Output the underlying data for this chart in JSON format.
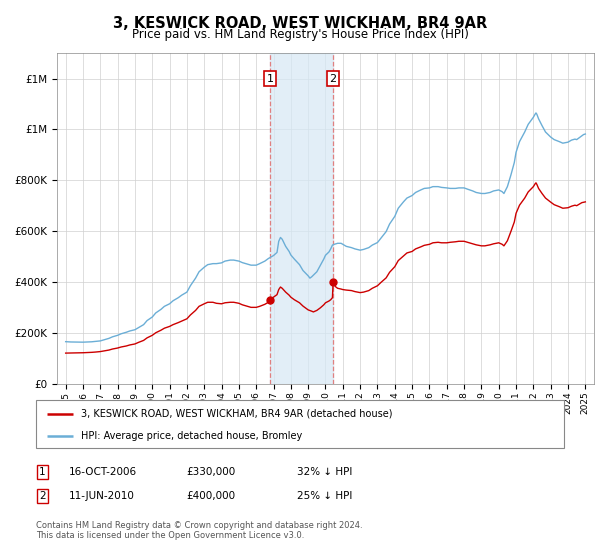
{
  "title": "3, KESWICK ROAD, WEST WICKHAM, BR4 9AR",
  "subtitle": "Price paid vs. HM Land Registry's House Price Index (HPI)",
  "legend_line1": "3, KESWICK ROAD, WEST WICKHAM, BR4 9AR (detached house)",
  "legend_line2": "HPI: Average price, detached house, Bromley",
  "footnote": "Contains HM Land Registry data © Crown copyright and database right 2024.\nThis data is licensed under the Open Government Licence v3.0.",
  "transaction1_date": "16-OCT-2006",
  "transaction1_price": 330000,
  "transaction1_label": "32% ↓ HPI",
  "transaction1_x": 2006.79,
  "transaction2_date": "11-JUN-2010",
  "transaction2_price": 400000,
  "transaction2_label": "25% ↓ HPI",
  "transaction2_x": 2010.44,
  "hpi_color": "#6baed6",
  "price_color": "#cc0000",
  "marker_color": "#cc0000",
  "shade_color": "#d6e8f5",
  "vline_color": "#e08080",
  "box_edge_color": "#cc0000",
  "ylim_min": 0,
  "ylim_max": 1300000,
  "xlim_min": 1994.5,
  "xlim_max": 2025.5,
  "hpi_data": [
    [
      1995.0,
      165000
    ],
    [
      1995.1,
      164500
    ],
    [
      1995.2,
      164200
    ],
    [
      1995.3,
      163800
    ],
    [
      1995.5,
      163500
    ],
    [
      1995.7,
      163000
    ],
    [
      1995.9,
      162800
    ],
    [
      1996.0,
      163000
    ],
    [
      1996.2,
      163500
    ],
    [
      1996.5,
      164500
    ],
    [
      1996.7,
      166000
    ],
    [
      1997.0,
      168000
    ],
    [
      1997.2,
      172000
    ],
    [
      1997.5,
      178000
    ],
    [
      1997.7,
      184000
    ],
    [
      1998.0,
      190000
    ],
    [
      1998.2,
      196000
    ],
    [
      1998.5,
      202000
    ],
    [
      1998.7,
      207000
    ],
    [
      1999.0,
      212000
    ],
    [
      1999.2,
      220000
    ],
    [
      1999.5,
      232000
    ],
    [
      1999.7,
      248000
    ],
    [
      2000.0,
      262000
    ],
    [
      2000.2,
      278000
    ],
    [
      2000.5,
      292000
    ],
    [
      2000.7,
      304000
    ],
    [
      2001.0,
      314000
    ],
    [
      2001.2,
      326000
    ],
    [
      2001.5,
      338000
    ],
    [
      2001.7,
      348000
    ],
    [
      2002.0,
      360000
    ],
    [
      2002.2,
      385000
    ],
    [
      2002.5,
      415000
    ],
    [
      2002.7,
      440000
    ],
    [
      2003.0,
      458000
    ],
    [
      2003.2,
      468000
    ],
    [
      2003.5,
      472000
    ],
    [
      2003.7,
      472000
    ],
    [
      2004.0,
      475000
    ],
    [
      2004.2,
      482000
    ],
    [
      2004.5,
      486000
    ],
    [
      2004.7,
      486000
    ],
    [
      2005.0,
      482000
    ],
    [
      2005.2,
      476000
    ],
    [
      2005.5,
      470000
    ],
    [
      2005.7,
      466000
    ],
    [
      2006.0,
      466000
    ],
    [
      2006.2,
      472000
    ],
    [
      2006.5,
      482000
    ],
    [
      2006.7,
      492000
    ],
    [
      2007.0,
      504000
    ],
    [
      2007.2,
      516000
    ],
    [
      2007.3,
      560000
    ],
    [
      2007.4,
      575000
    ],
    [
      2007.5,
      568000
    ],
    [
      2007.7,
      540000
    ],
    [
      2007.9,
      520000
    ],
    [
      2008.0,
      506000
    ],
    [
      2008.2,
      490000
    ],
    [
      2008.5,
      468000
    ],
    [
      2008.7,
      445000
    ],
    [
      2009.0,
      424000
    ],
    [
      2009.1,
      415000
    ],
    [
      2009.2,
      420000
    ],
    [
      2009.5,
      440000
    ],
    [
      2009.7,
      465000
    ],
    [
      2009.9,
      490000
    ],
    [
      2010.0,
      505000
    ],
    [
      2010.2,
      518000
    ],
    [
      2010.3,
      530000
    ],
    [
      2010.4,
      545000
    ],
    [
      2010.5,
      548000
    ],
    [
      2010.6,
      550000
    ],
    [
      2010.7,
      552000
    ],
    [
      2010.9,
      552000
    ],
    [
      2011.0,
      548000
    ],
    [
      2011.2,
      540000
    ],
    [
      2011.5,
      535000
    ],
    [
      2011.7,
      530000
    ],
    [
      2012.0,
      525000
    ],
    [
      2012.2,
      528000
    ],
    [
      2012.5,
      535000
    ],
    [
      2012.7,
      545000
    ],
    [
      2013.0,
      555000
    ],
    [
      2013.2,
      572000
    ],
    [
      2013.5,
      598000
    ],
    [
      2013.7,
      628000
    ],
    [
      2014.0,
      658000
    ],
    [
      2014.2,
      690000
    ],
    [
      2014.5,
      715000
    ],
    [
      2014.7,
      730000
    ],
    [
      2015.0,
      740000
    ],
    [
      2015.2,
      752000
    ],
    [
      2015.5,
      762000
    ],
    [
      2015.7,
      768000
    ],
    [
      2016.0,
      770000
    ],
    [
      2016.2,
      775000
    ],
    [
      2016.5,
      775000
    ],
    [
      2016.7,
      772000
    ],
    [
      2017.0,
      770000
    ],
    [
      2017.2,
      768000
    ],
    [
      2017.5,
      768000
    ],
    [
      2017.7,
      770000
    ],
    [
      2018.0,
      770000
    ],
    [
      2018.2,
      765000
    ],
    [
      2018.5,
      758000
    ],
    [
      2018.7,
      752000
    ],
    [
      2019.0,
      748000
    ],
    [
      2019.2,
      748000
    ],
    [
      2019.5,
      752000
    ],
    [
      2019.7,
      758000
    ],
    [
      2020.0,
      762000
    ],
    [
      2020.2,
      755000
    ],
    [
      2020.3,
      748000
    ],
    [
      2020.5,
      775000
    ],
    [
      2020.7,
      820000
    ],
    [
      2020.9,
      870000
    ],
    [
      2021.0,
      910000
    ],
    [
      2021.2,
      952000
    ],
    [
      2021.5,
      990000
    ],
    [
      2021.7,
      1020000
    ],
    [
      2022.0,
      1048000
    ],
    [
      2022.1,
      1060000
    ],
    [
      2022.15,
      1065000
    ],
    [
      2022.2,
      1060000
    ],
    [
      2022.3,
      1042000
    ],
    [
      2022.5,
      1015000
    ],
    [
      2022.7,
      990000
    ],
    [
      2023.0,
      970000
    ],
    [
      2023.2,
      960000
    ],
    [
      2023.5,
      952000
    ],
    [
      2023.7,
      946000
    ],
    [
      2024.0,
      950000
    ],
    [
      2024.2,
      958000
    ],
    [
      2024.4,
      962000
    ],
    [
      2024.5,
      960000
    ],
    [
      2024.6,
      965000
    ],
    [
      2024.7,
      970000
    ],
    [
      2024.8,
      975000
    ],
    [
      2024.9,
      980000
    ],
    [
      2025.0,
      982000
    ]
  ],
  "price_data": [
    [
      1995.0,
      120000
    ],
    [
      1995.1,
      120200
    ],
    [
      1995.3,
      120500
    ],
    [
      1995.5,
      120800
    ],
    [
      1995.7,
      121000
    ],
    [
      1995.9,
      121200
    ],
    [
      1996.0,
      121400
    ],
    [
      1996.2,
      122000
    ],
    [
      1996.5,
      123000
    ],
    [
      1996.7,
      124000
    ],
    [
      1997.0,
      126000
    ],
    [
      1997.2,
      128500
    ],
    [
      1997.5,
      132000
    ],
    [
      1997.7,
      136000
    ],
    [
      1998.0,
      140000
    ],
    [
      1998.2,
      144000
    ],
    [
      1998.5,
      148000
    ],
    [
      1998.7,
      152000
    ],
    [
      1999.0,
      156000
    ],
    [
      1999.2,
      162000
    ],
    [
      1999.5,
      170000
    ],
    [
      1999.7,
      180000
    ],
    [
      2000.0,
      190000
    ],
    [
      2000.2,
      200000
    ],
    [
      2000.5,
      210000
    ],
    [
      2000.7,
      218000
    ],
    [
      2001.0,
      225000
    ],
    [
      2001.2,
      232000
    ],
    [
      2001.5,
      240000
    ],
    [
      2001.7,
      246000
    ],
    [
      2002.0,
      255000
    ],
    [
      2002.2,
      270000
    ],
    [
      2002.5,
      288000
    ],
    [
      2002.7,
      304000
    ],
    [
      2003.0,
      314000
    ],
    [
      2003.2,
      320000
    ],
    [
      2003.5,
      320000
    ],
    [
      2003.7,
      316000
    ],
    [
      2004.0,
      314000
    ],
    [
      2004.2,
      318000
    ],
    [
      2004.5,
      320000
    ],
    [
      2004.7,
      320000
    ],
    [
      2005.0,
      316000
    ],
    [
      2005.2,
      310000
    ],
    [
      2005.5,
      304000
    ],
    [
      2005.7,
      300000
    ],
    [
      2006.0,
      300000
    ],
    [
      2006.2,
      304000
    ],
    [
      2006.5,
      312000
    ],
    [
      2006.7,
      320000
    ],
    [
      2006.79,
      330000
    ],
    [
      2007.0,
      340000
    ],
    [
      2007.2,
      350000
    ],
    [
      2007.3,
      370000
    ],
    [
      2007.4,
      380000
    ],
    [
      2007.5,
      375000
    ],
    [
      2007.7,
      360000
    ],
    [
      2007.9,
      348000
    ],
    [
      2008.0,
      340000
    ],
    [
      2008.2,
      330000
    ],
    [
      2008.5,
      318000
    ],
    [
      2008.7,
      305000
    ],
    [
      2009.0,
      290000
    ],
    [
      2009.2,
      285000
    ],
    [
      2009.3,
      282000
    ],
    [
      2009.5,
      288000
    ],
    [
      2009.7,
      298000
    ],
    [
      2009.9,
      310000
    ],
    [
      2010.0,
      318000
    ],
    [
      2010.2,
      325000
    ],
    [
      2010.3,
      330000
    ],
    [
      2010.4,
      338000
    ],
    [
      2010.44,
      400000
    ],
    [
      2010.5,
      390000
    ],
    [
      2010.6,
      380000
    ],
    [
      2010.7,
      375000
    ],
    [
      2010.9,
      372000
    ],
    [
      2011.0,
      370000
    ],
    [
      2011.2,
      368000
    ],
    [
      2011.5,
      366000
    ],
    [
      2011.7,
      362000
    ],
    [
      2012.0,
      358000
    ],
    [
      2012.2,
      360000
    ],
    [
      2012.5,
      366000
    ],
    [
      2012.7,
      375000
    ],
    [
      2013.0,
      385000
    ],
    [
      2013.2,
      398000
    ],
    [
      2013.5,
      416000
    ],
    [
      2013.7,
      438000
    ],
    [
      2014.0,
      460000
    ],
    [
      2014.2,
      484000
    ],
    [
      2014.5,
      502000
    ],
    [
      2014.7,
      514000
    ],
    [
      2015.0,
      520000
    ],
    [
      2015.2,
      530000
    ],
    [
      2015.5,
      538000
    ],
    [
      2015.7,
      544000
    ],
    [
      2016.0,
      548000
    ],
    [
      2016.2,
      554000
    ],
    [
      2016.5,
      556000
    ],
    [
      2016.7,
      554000
    ],
    [
      2017.0,
      554000
    ],
    [
      2017.2,
      556000
    ],
    [
      2017.5,
      558000
    ],
    [
      2017.7,
      560000
    ],
    [
      2018.0,
      560000
    ],
    [
      2018.2,
      556000
    ],
    [
      2018.5,
      550000
    ],
    [
      2018.7,
      546000
    ],
    [
      2019.0,
      542000
    ],
    [
      2019.2,
      542000
    ],
    [
      2019.5,
      546000
    ],
    [
      2019.7,
      550000
    ],
    [
      2020.0,
      554000
    ],
    [
      2020.2,
      548000
    ],
    [
      2020.3,
      542000
    ],
    [
      2020.5,
      562000
    ],
    [
      2020.7,
      598000
    ],
    [
      2020.9,
      636000
    ],
    [
      2021.0,
      670000
    ],
    [
      2021.2,
      702000
    ],
    [
      2021.5,
      730000
    ],
    [
      2021.7,
      754000
    ],
    [
      2022.0,
      775000
    ],
    [
      2022.1,
      786000
    ],
    [
      2022.15,
      790000
    ],
    [
      2022.2,
      784000
    ],
    [
      2022.3,
      768000
    ],
    [
      2022.5,
      748000
    ],
    [
      2022.7,
      730000
    ],
    [
      2023.0,
      714000
    ],
    [
      2023.2,
      704000
    ],
    [
      2023.5,
      696000
    ],
    [
      2023.7,
      690000
    ],
    [
      2024.0,
      692000
    ],
    [
      2024.2,
      698000
    ],
    [
      2024.4,
      702000
    ],
    [
      2024.5,
      700000
    ],
    [
      2024.6,
      704000
    ],
    [
      2024.7,
      708000
    ],
    [
      2024.8,
      712000
    ],
    [
      2025.0,
      715000
    ]
  ]
}
